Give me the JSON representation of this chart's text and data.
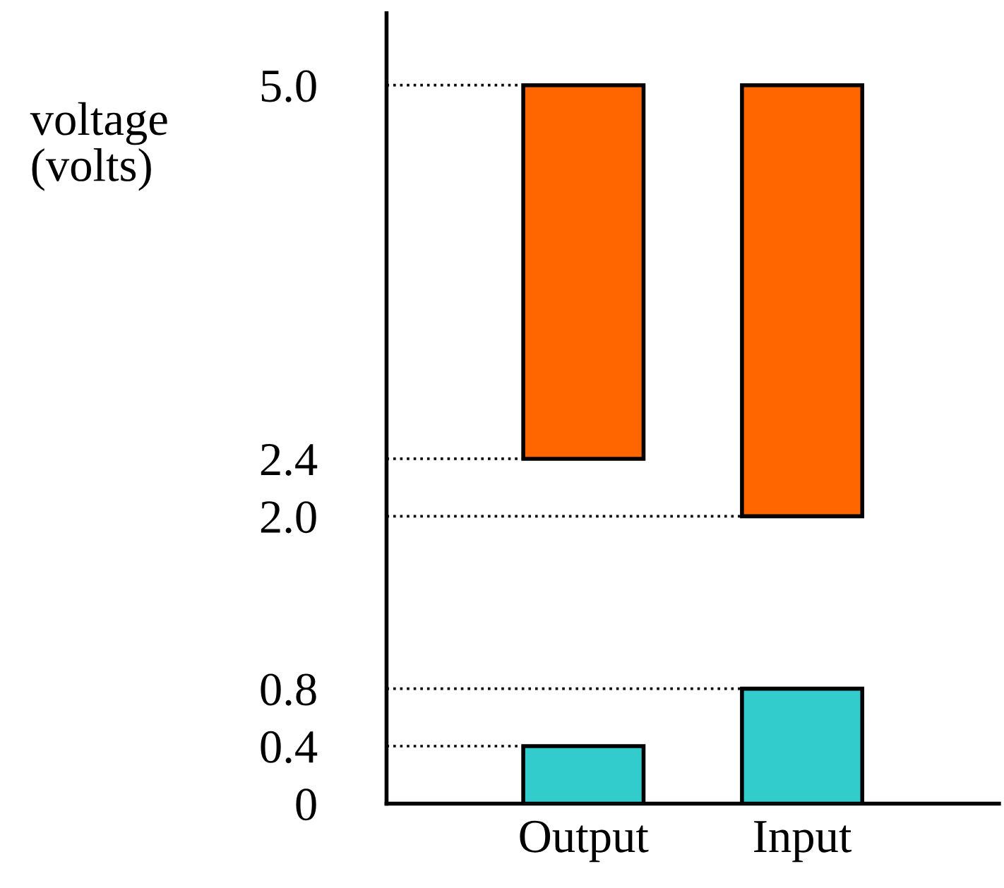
{
  "chart_data": {
    "type": "bar",
    "ylabel": "voltage\n(volts)",
    "categories": [
      "Output",
      "Input"
    ],
    "series": [
      {
        "color": "#ff6600",
        "values": [
          2.6,
          3.0
        ],
        "base": [
          2.4,
          2.0
        ]
      },
      {
        "color": "#33cccc",
        "values": [
          0.4,
          0.8
        ]
      }
    ],
    "ylim": [
      0,
      5.5
    ],
    "yticks": [
      0,
      0.4,
      0.8,
      {
        "value": 2.0,
        "label": "2.0"
      },
      2.4,
      {
        "value": 5.0,
        "label": "5.0"
      }
    ],
    "ref_lines": [
      {
        "axis": "y",
        "value": 5.0,
        "line_style": "dotted",
        "color": "#000000"
      },
      {
        "axis": "y",
        "value": 2.4,
        "line_style": "dotted",
        "color": "#000000"
      },
      {
        "axis": "y",
        "value": 2.0,
        "line_style": "dotted",
        "color": "#000000"
      },
      {
        "axis": "y",
        "value": 0.8,
        "line_style": "dotted",
        "color": "#000000"
      },
      {
        "axis": "y",
        "value": 0.4,
        "line_style": "dotted",
        "color": "#000000"
      }
    ],
    "grid": false,
    "legend": false
  }
}
